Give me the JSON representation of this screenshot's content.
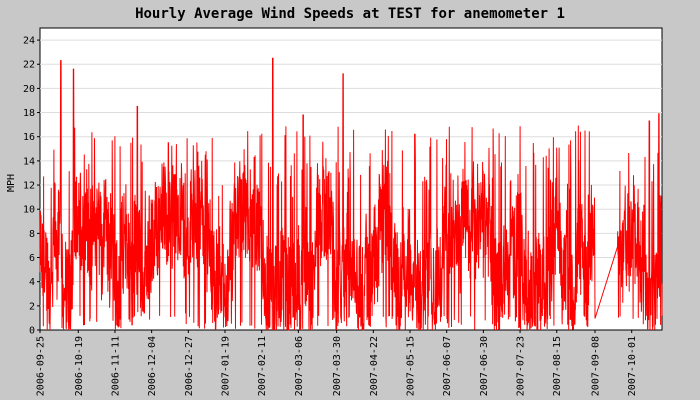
{
  "chart_data": {
    "type": "line",
    "title": "Hourly Average Wind Speeds at TEST for anemometer 1",
    "ylabel": "MPH",
    "xlabel": "",
    "ylim": [
      0,
      25
    ],
    "yticks": [
      0,
      2,
      4,
      6,
      8,
      10,
      12,
      14,
      16,
      18,
      20,
      22,
      24
    ],
    "x_start": "2006-09-25",
    "x_end": "2007-10-20",
    "x_tick_labels": [
      "2006-09-25",
      "2006-10-19",
      "2006-11-11",
      "2006-12-04",
      "2006-12-27",
      "2007-01-19",
      "2007-02-11",
      "2007-03-06",
      "2007-03-30",
      "2007-04-22",
      "2007-05-15",
      "2007-06-07",
      "2007-06-30",
      "2007-07-23",
      "2007-08-15",
      "2007-09-08",
      "2007-10-01"
    ],
    "grid": true,
    "series": [
      {
        "color": "#ff0000",
        "note_peaks": [
          {
            "x": "2006-10-08",
            "y": 22.3
          },
          {
            "x": "2006-10-16",
            "y": 21.6
          },
          {
            "x": "2006-11-25",
            "y": 18.5
          },
          {
            "x": "2007-02-18",
            "y": 22.5
          },
          {
            "x": "2007-03-09",
            "y": 17.8
          },
          {
            "x": "2007-04-03",
            "y": 21.2
          },
          {
            "x": "2007-05-18",
            "y": 16.2
          },
          {
            "x": "2007-09-10",
            "y": 16.5
          },
          {
            "x": "2007-10-12",
            "y": 17.3
          },
          {
            "x": "2007-10-18",
            "y": 17.9
          }
        ]
      }
    ]
  }
}
